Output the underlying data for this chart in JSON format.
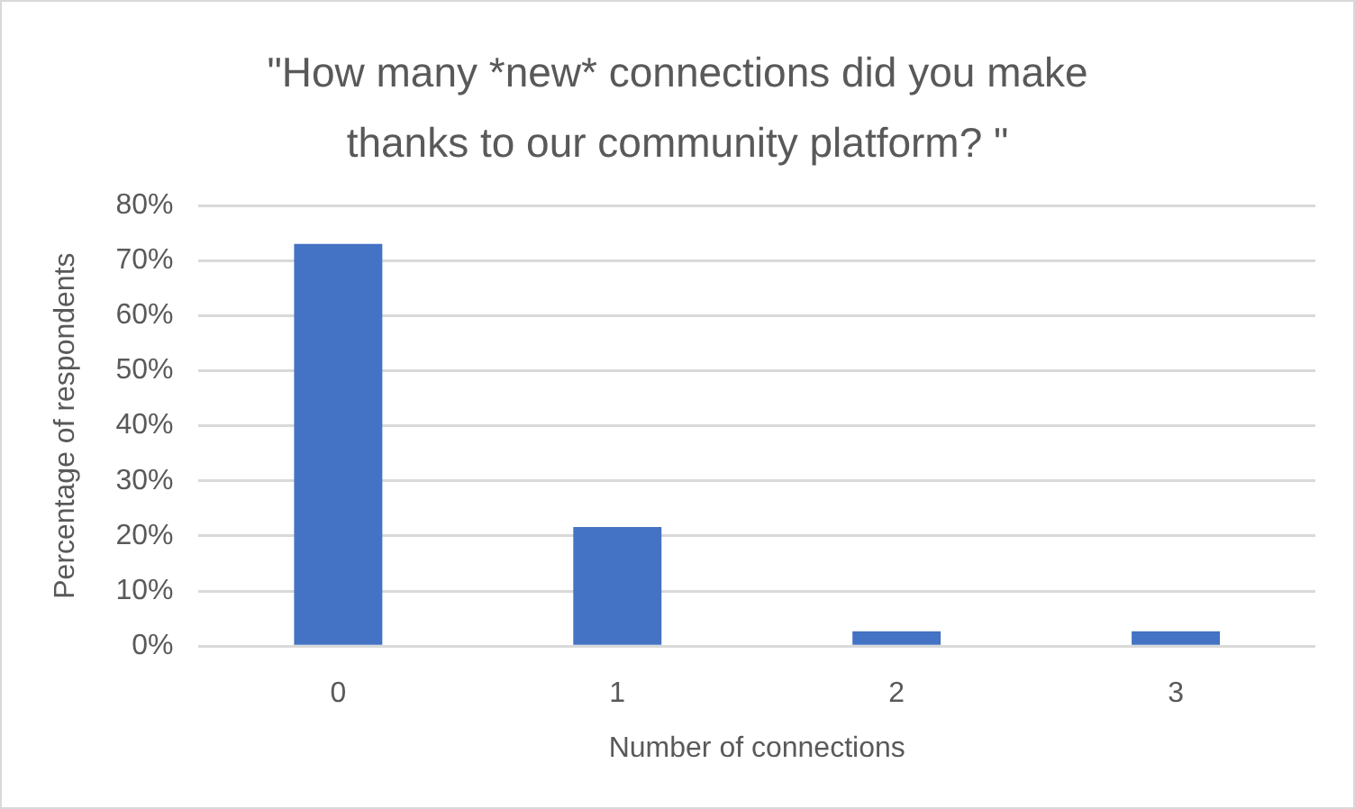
{
  "chart_data": {
    "type": "bar",
    "title": "\"How many *new* connections did you make thanks to our community platform? \"",
    "xlabel": "Number of connections",
    "ylabel": "Percentage of respondents",
    "categories": [
      "0",
      "1",
      "2",
      "3"
    ],
    "values": [
      73,
      21.6,
      2.7,
      2.7
    ],
    "color": "#4472c4",
    "ylim": [
      0,
      80
    ],
    "yticks": [
      {
        "value": 0,
        "label": "0%"
      },
      {
        "value": 10,
        "label": "10%"
      },
      {
        "value": 20,
        "label": "20%"
      },
      {
        "value": 30,
        "label": "30%"
      },
      {
        "value": 40,
        "label": "40%"
      },
      {
        "value": 50,
        "label": "50%"
      },
      {
        "value": 60,
        "label": "60%"
      },
      {
        "value": 70,
        "label": "70%"
      },
      {
        "value": 80,
        "label": "80%"
      }
    ],
    "grid": "y",
    "legend": false
  }
}
